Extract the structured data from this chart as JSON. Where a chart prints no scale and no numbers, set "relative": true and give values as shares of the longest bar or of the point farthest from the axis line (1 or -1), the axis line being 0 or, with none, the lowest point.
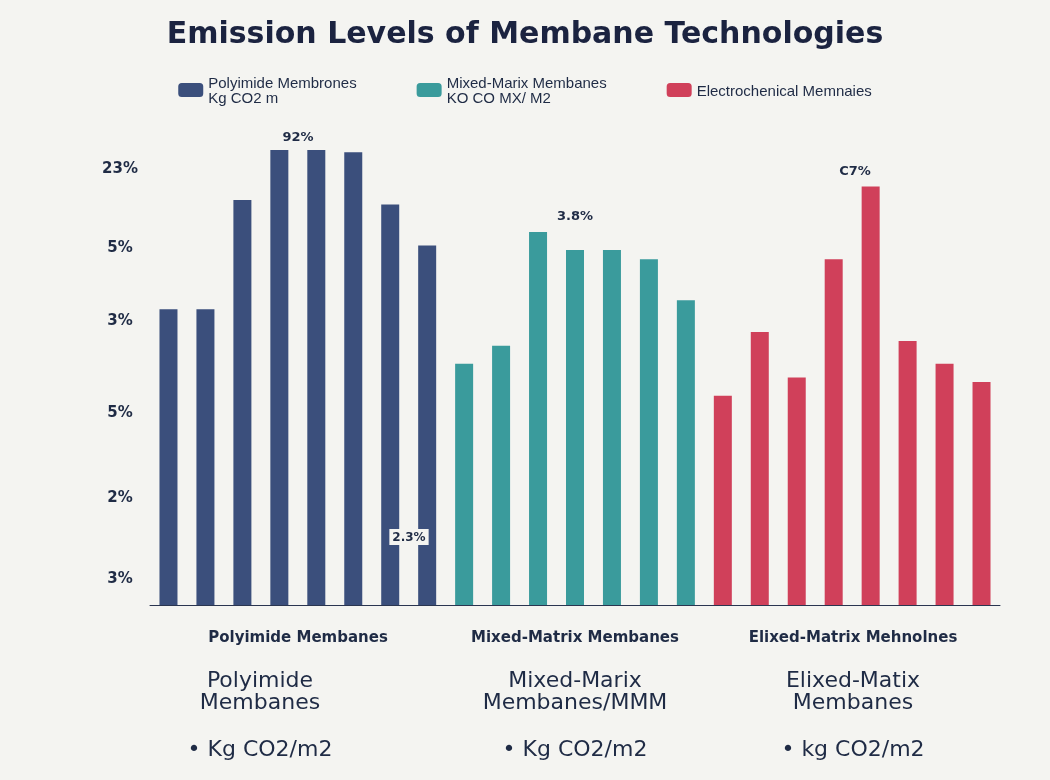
{
  "chart_data": {
    "type": "bar",
    "title": "Emission Levels of Membane Technologies",
    "relative": true,
    "legend": "top",
    "stacked": true,
    "categories": [
      null,
      null,
      null,
      null,
      null,
      null,
      null,
      null,
      null,
      null,
      null,
      null,
      null,
      null,
      null,
      null,
      null,
      null,
      null,
      null,
      null,
      null,
      null
    ],
    "series": [
      {
        "name": "Polyimide Membrones\nKg CO2 m",
        "color": "#3b4f7c",
        "values": [
          0.65,
          0.65,
          0.89,
          1.0,
          1.0,
          0.995,
          0.88,
          0.79,
          null,
          null,
          null,
          null,
          null,
          null,
          null,
          null,
          null,
          null,
          null,
          null,
          null,
          null,
          null
        ]
      },
      {
        "name": "Mixed-Marix Membanes\nKO CO MX/ M2",
        "color": "#3a9b9c",
        "values": [
          null,
          null,
          null,
          null,
          null,
          null,
          null,
          null,
          0.53,
          0.57,
          0.82,
          0.78,
          0.78,
          0.76,
          0.67,
          null,
          null,
          null,
          null,
          null,
          null,
          null,
          null
        ]
      },
      {
        "name": "Electrochenical Memnaies",
        "color": "#d0405a",
        "values": [
          null,
          null,
          null,
          null,
          null,
          null,
          null,
          null,
          null,
          null,
          null,
          null,
          null,
          null,
          null,
          0.46,
          0.6,
          0.5,
          0.76,
          0.92,
          0.58,
          0.53,
          0.49
        ]
      }
    ],
    "annotations": [
      "23%",
      "5%",
      "3%",
      "5%",
      "2%",
      "3%",
      "Polyimide Membanes",
      "Mixed-Matrix Membanes",
      "Elixed-Matrix Mehnolnes",
      "Polyimide\nMembanes",
      "Mixed-Marix\nMembanes/MMM",
      "Elixed-Matix\nMembanes",
      "• Kg CO2/m2",
      "• Kg CO2/m2",
      "• kg CO2/m2",
      "92%",
      "3.8%",
      "C7%",
      "2.3%"
    ]
  }
}
